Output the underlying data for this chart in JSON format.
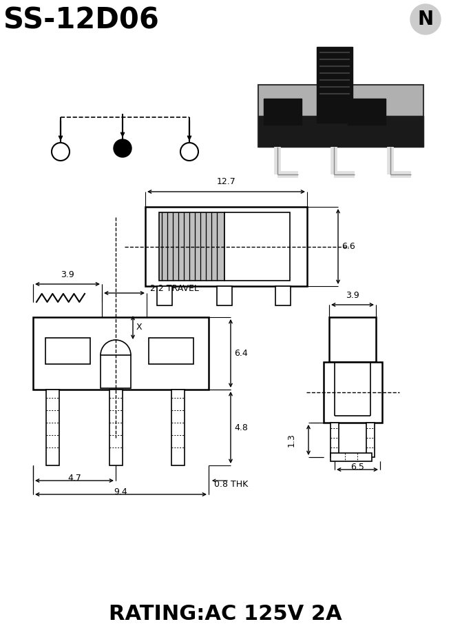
{
  "title": "SS-12D06",
  "rating": "RATING:AC 125V 2A",
  "bg_color": "#ffffff",
  "line_color": "#000000",
  "dim_12_7": "12.7",
  "dim_6_6": "6.6",
  "dim_3_9_top": "3.9",
  "dim_2_2": "2.2 TRAVEL",
  "dim_6_4": "6.4",
  "dim_4_8": "4.8",
  "dim_4_7": "4.7",
  "dim_9_4": "9.4",
  "dim_0_8": "0.8 THK",
  "dim_3_9_right": "3.9",
  "dim_1_3": "1.3",
  "dim_6_5": "6.5",
  "label_x": "X"
}
